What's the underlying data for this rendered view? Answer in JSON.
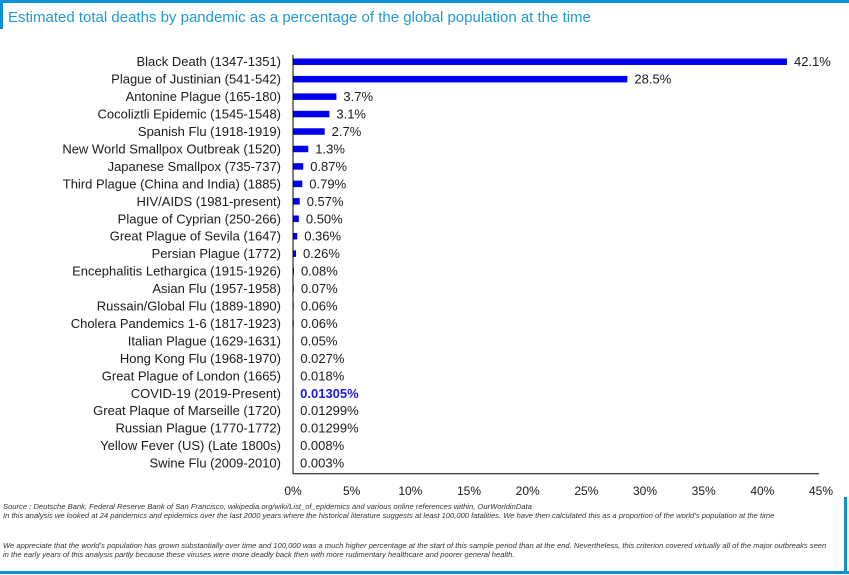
{
  "header": {
    "title": "Estimated total deaths by pandemic as a percentage of the global population at the time"
  },
  "colors": {
    "accent": "#0a8fd1",
    "title_text": "#1f9ad6",
    "bar": "#0000ee",
    "highlight_label": "#1a1ae6"
  },
  "chart_data": {
    "type": "bar",
    "orientation": "horizontal",
    "title": "Estimated total deaths by pandemic as a percentage of the global population at the time",
    "xlabel": "",
    "ylabel": "",
    "xlim": [
      0,
      45
    ],
    "x_ticks": [
      0,
      5,
      10,
      15,
      20,
      25,
      30,
      35,
      40,
      45
    ],
    "x_tick_labels": [
      "0%",
      "5%",
      "10%",
      "15%",
      "20%",
      "25%",
      "30%",
      "35%",
      "40%",
      "45%"
    ],
    "grid": false,
    "legend": "none",
    "categories": [
      "Black Death (1347-1351)",
      "Plague of Justinian (541-542)",
      "Antonine Plague (165-180)",
      "Cocoliztli Epidemic (1545-1548)",
      "Spanish Flu (1918-1919)",
      "New World Smallpox Outbreak (1520)",
      "Japanese Smallpox (735-737)",
      "Third Plague (China and India) (1885)",
      "HIV/AIDS (1981-present)",
      "Plague of Cyprian (250-266)",
      "Great Plague of Sevila (1647)",
      "Persian Plague (1772)",
      "Encephalitis Lethargica  (1915-1926)",
      "Asian Flu (1957-1958)",
      "Russain/Global Flu  (1889-1890)",
      "Cholera Pandemics 1-6 (1817-1923)",
      "Italian Plague (1629-1631)",
      "Hong Kong Flu (1968-1970)",
      "Great Plague of London (1665)",
      "COVID-19 (2019-Present)",
      "Great Plaque of Marseille (1720)",
      "Russian Plague (1770-1772)",
      "Yellow Fever (US) (Late 1800s)",
      "Swine Flu (2009-2010)"
    ],
    "values": [
      42.1,
      28.5,
      3.7,
      3.1,
      2.7,
      1.3,
      0.87,
      0.79,
      0.57,
      0.5,
      0.36,
      0.26,
      0.08,
      0.07,
      0.06,
      0.06,
      0.05,
      0.027,
      0.018,
      0.01305,
      0.01299,
      0.01299,
      0.008,
      0.003
    ],
    "data_labels": [
      "42.1%",
      "28.5%",
      "3.7%",
      "3.1%",
      "2.7%",
      "1.3%",
      "0.87%",
      "0.79%",
      "0.57%",
      "0.50%",
      "0.36%",
      "0.26%",
      "0.08%",
      "0.07%",
      "0.06%",
      "0.06%",
      "0.05%",
      "0.027%",
      "0.018%",
      "0.01305%",
      "0.01299%",
      "0.01299%",
      "0.008%",
      "0.003%"
    ],
    "highlighted_category": "COVID-19 (2019-Present)"
  },
  "footnotes": {
    "source": "Source : Deutsche Bank, Federal Reserve Bank of San Francisco, wikipedia.org/wiki/List_of_epidemics and various online references within, OurWorldinData",
    "note1": "In this analysis we looked at 24 pandemics and epidemics over the last 2000 years where the historical literature suggests at least 100,000 fatalities. We have then calculated this as a proportion of the world’s population at the time",
    "note2": "We appreciate that the world’s population has grown substantially over time and 100,000 was a much higher percentage at the start of this sample period than at the end. Nevertheless, this criterion covered virtually all of the major outbreaks seen in the early years of this analysis partly because these viruses were more deadly back then with more rudimentary healthcare and poorer general health."
  }
}
